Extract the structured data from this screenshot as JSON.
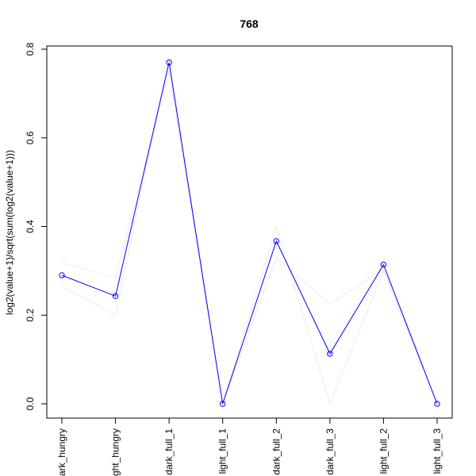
{
  "chart_data": {
    "type": "line",
    "title": "768",
    "xlabel": "",
    "ylabel": "log2(value+1)/sqrt(sum(log2(value+1)))",
    "categories": [
      "dark_hungry",
      "light_hungry",
      "dark_full_1",
      "light_full_1",
      "dark_full_2",
      "dark_full_3",
      "light_full_2",
      "light_full_3"
    ],
    "ylim": [
      0.0,
      0.8
    ],
    "yticks": [
      0.0,
      0.2,
      0.4,
      0.6,
      0.8
    ],
    "ytick_labels": [
      "0.0",
      "0.2",
      "0.4",
      "0.6",
      "0.8"
    ],
    "grid": false,
    "series": [
      {
        "values": [
          0.29,
          0.243,
          0.77,
          0.0,
          0.367,
          0.113,
          0.314,
          0.0
        ],
        "color": "#0000ff",
        "markers": true,
        "highlight": true
      },
      {
        "values": [
          0.318,
          0.285,
          0.75,
          0.0,
          0.4,
          0.0,
          0.3,
          0.0
        ],
        "color": "#ebebeb",
        "markers": false
      },
      {
        "values": [
          0.265,
          0.2,
          0.78,
          0.0,
          0.33,
          0.225,
          0.305,
          0.0
        ],
        "color": "#ebebeb",
        "markers": false
      }
    ]
  }
}
